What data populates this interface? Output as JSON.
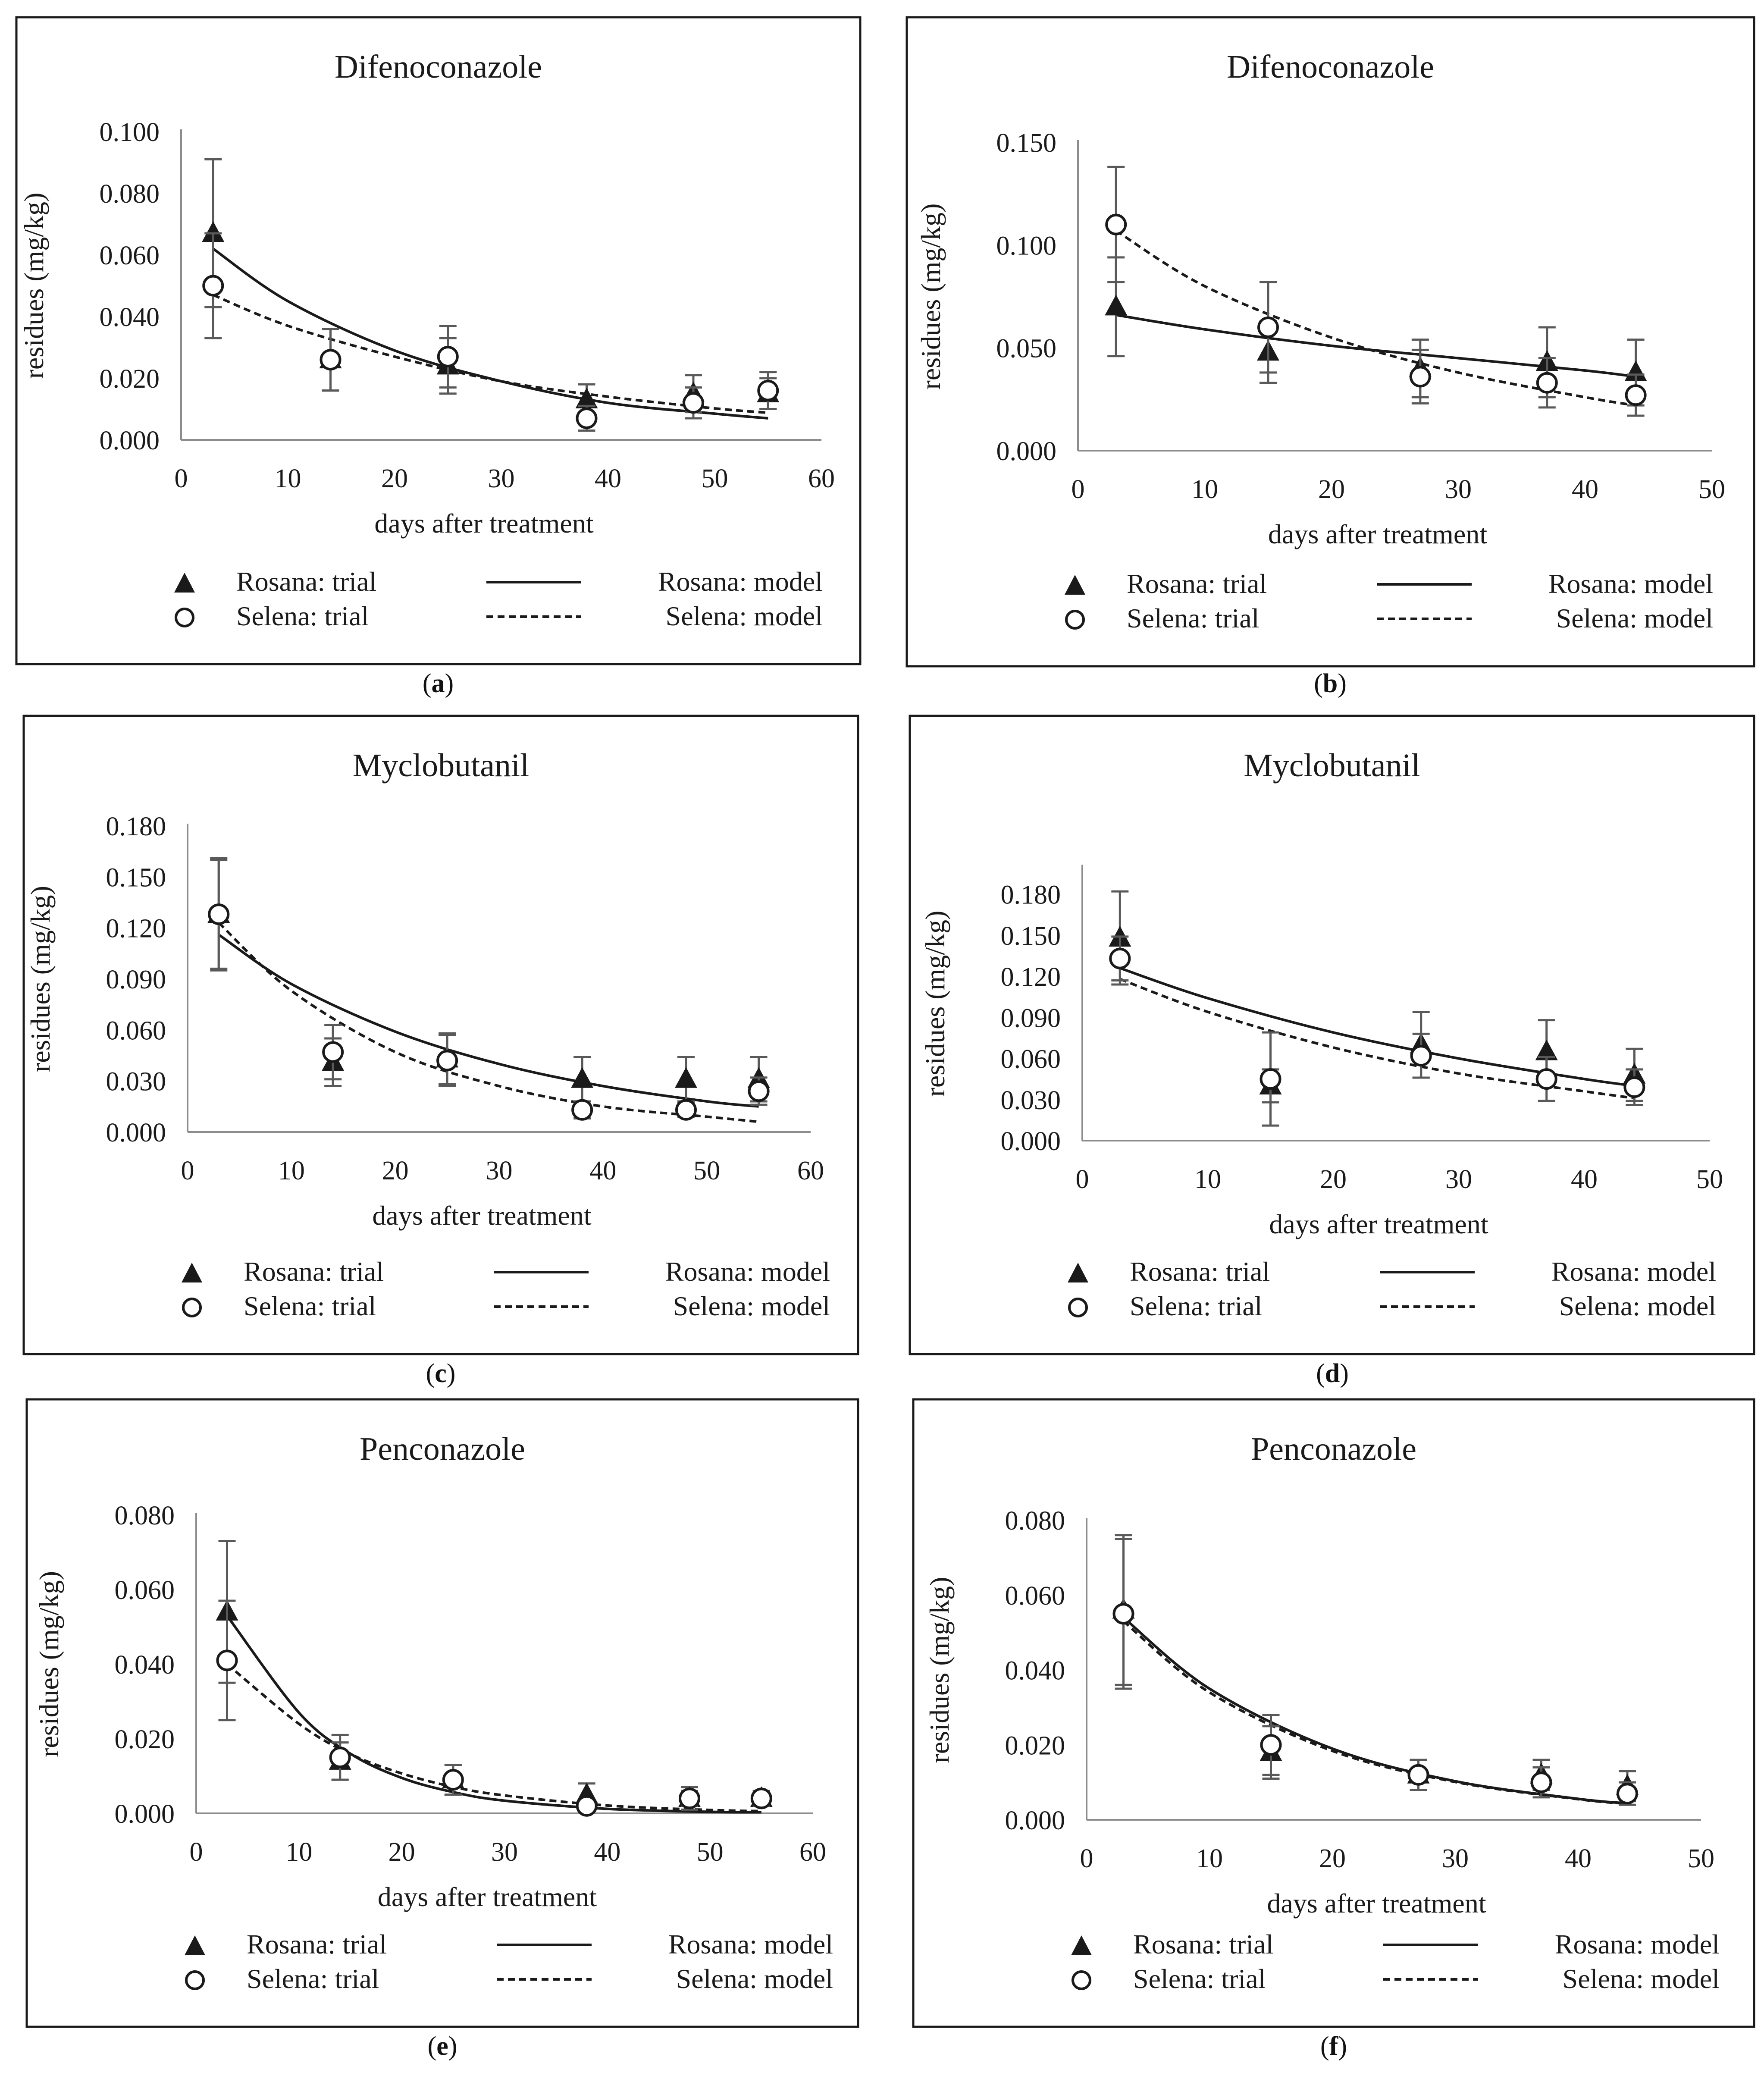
{
  "figure": {
    "legend_labels": {
      "rosana_trial": "Rosana: trial",
      "rosana_model": "Rosana: model",
      "selena_trial": "Selena: trial",
      "selena_model": "Selena: model"
    },
    "colors": {
      "ink": "#1a1a1a",
      "errorbar": "#595959",
      "background": "#ffffff"
    }
  },
  "chart_data": [
    {
      "panel": "a",
      "type": "scatter",
      "title": "Difenoconazole",
      "xlabel": "days after treatment",
      "ylabel": "residues (mg/kg)",
      "xlim": [
        0,
        60
      ],
      "xticks": [
        0,
        10,
        20,
        30,
        40,
        50,
        60
      ],
      "ylim": [
        0,
        0.1
      ],
      "yticks": [
        "0.000",
        "0.020",
        "0.040",
        "0.060",
        "0.080",
        "0.100"
      ],
      "series": [
        {
          "name": "Rosana: trial",
          "marker": "triangle",
          "x": [
            3,
            14,
            25,
            38,
            48,
            55
          ],
          "y": [
            0.067,
            0.026,
            0.024,
            0.013,
            0.015,
            0.015
          ],
          "err": [
            0.024,
            0.01,
            0.009,
            0.005,
            0.006,
            0.005
          ]
        },
        {
          "name": "Selena: trial",
          "marker": "circle",
          "x": [
            3,
            14,
            25,
            38,
            48,
            55
          ],
          "y": [
            0.05,
            0.026,
            0.027,
            0.007,
            0.012,
            0.016
          ],
          "err": [
            0.017,
            0.01,
            0.01,
            0.004,
            0.005,
            0.006
          ]
        },
        {
          "name": "Rosana: model",
          "line": "solid",
          "x": [
            3,
            10,
            20,
            30,
            40,
            50,
            55
          ],
          "y": [
            0.062,
            0.045,
            0.029,
            0.019,
            0.012,
            0.0085,
            0.007
          ]
        },
        {
          "name": "Selena: model",
          "line": "dashed",
          "x": [
            3,
            10,
            20,
            30,
            40,
            50,
            55
          ],
          "y": [
            0.047,
            0.037,
            0.027,
            0.019,
            0.014,
            0.0102,
            0.0088
          ]
        }
      ]
    },
    {
      "panel": "b",
      "type": "scatter",
      "title": "Difenoconazole",
      "xlabel": "days after treatment",
      "ylabel": "residues (mg/kg)",
      "xlim": [
        0,
        50
      ],
      "xticks": [
        0,
        10,
        20,
        30,
        40,
        50
      ],
      "ylim": [
        0,
        0.15
      ],
      "yticks": [
        "0.000",
        "0.050",
        "0.100",
        "0.150"
      ],
      "series": [
        {
          "name": "Rosana: trial",
          "marker": "triangle",
          "x": [
            3,
            15,
            27,
            37,
            44
          ],
          "y": [
            0.07,
            0.048,
            0.04,
            0.043,
            0.038
          ],
          "err": [
            0.024,
            0.015,
            0.014,
            0.017,
            0.016
          ]
        },
        {
          "name": "Selena: trial",
          "marker": "circle",
          "x": [
            3,
            15,
            27,
            37,
            44
          ],
          "y": [
            0.11,
            0.06,
            0.036,
            0.033,
            0.027
          ],
          "err": [
            0.028,
            0.022,
            0.013,
            0.012,
            0.01
          ]
        },
        {
          "name": "Rosana: model",
          "line": "solid",
          "x": [
            3,
            10,
            20,
            30,
            40,
            44
          ],
          "y": [
            0.066,
            0.059,
            0.051,
            0.045,
            0.039,
            0.036
          ]
        },
        {
          "name": "Selena: model",
          "line": "dashed",
          "x": [
            3,
            10,
            20,
            30,
            40,
            44
          ],
          "y": [
            0.107,
            0.08,
            0.055,
            0.038,
            0.026,
            0.022
          ]
        }
      ]
    },
    {
      "panel": "c",
      "type": "scatter",
      "title": "Myclobutanil",
      "xlabel": "days after treatment",
      "ylabel": "residues (mg/kg)",
      "xlim": [
        0,
        60
      ],
      "xticks": [
        0,
        10,
        20,
        30,
        40,
        50,
        60
      ],
      "ylim": [
        0,
        0.18
      ],
      "yticks": [
        "0.000",
        "0.030",
        "0.060",
        "0.090",
        "0.120",
        "0.150",
        "0.180"
      ],
      "series": [
        {
          "name": "Rosana: trial",
          "marker": "triangle",
          "x": [
            3,
            14,
            25,
            38,
            48,
            55
          ],
          "y": [
            0.128,
            0.041,
            0.043,
            0.031,
            0.031,
            0.031
          ],
          "err": [
            0.033,
            0.014,
            0.015,
            0.013,
            0.013,
            0.013
          ]
        },
        {
          "name": "Selena: trial",
          "marker": "circle",
          "x": [
            3,
            14,
            25,
            38,
            48,
            55
          ],
          "y": [
            0.128,
            0.047,
            0.042,
            0.013,
            0.013,
            0.024
          ],
          "err": [
            0.032,
            0.016,
            0.015,
            0.005,
            0.004,
            0.008
          ]
        },
        {
          "name": "Rosana: model",
          "line": "solid",
          "x": [
            3,
            10,
            20,
            30,
            40,
            50,
            55
          ],
          "y": [
            0.116,
            0.087,
            0.059,
            0.04,
            0.027,
            0.018,
            0.015
          ]
        },
        {
          "name": "Selena: model",
          "line": "dashed",
          "x": [
            3,
            10,
            20,
            30,
            40,
            50,
            55
          ],
          "y": [
            0.123,
            0.083,
            0.047,
            0.027,
            0.015,
            0.009,
            0.006
          ]
        }
      ]
    },
    {
      "panel": "d",
      "type": "scatter",
      "title": "Myclobutanil",
      "xlabel": "days after treatment",
      "ylabel": "residues (mg/kg)",
      "xlim": [
        0,
        50
      ],
      "xticks": [
        0,
        10,
        20,
        30,
        40,
        50
      ],
      "ylim": [
        0,
        0.2
      ],
      "yticks": [
        "0.000",
        "0.030",
        "0.060",
        "0.090",
        "0.120",
        "0.150",
        "0.180"
      ],
      "series": [
        {
          "name": "Rosana: trial",
          "marker": "triangle",
          "x": [
            3,
            15,
            27,
            37,
            44
          ],
          "y": [
            0.148,
            0.04,
            0.07,
            0.065,
            0.048
          ],
          "err": [
            0.034,
            0.012,
            0.024,
            0.023,
            0.019
          ]
        },
        {
          "name": "Selena: trial",
          "marker": "circle",
          "x": [
            3,
            15,
            27,
            37,
            44
          ],
          "y": [
            0.133,
            0.045,
            0.062,
            0.045,
            0.039
          ],
          "err": [
            0.016,
            0.034,
            0.016,
            0.016,
            0.013
          ]
        },
        {
          "name": "Rosana: model",
          "line": "solid",
          "x": [
            3,
            10,
            20,
            30,
            40,
            44
          ],
          "y": [
            0.126,
            0.104,
            0.079,
            0.06,
            0.045,
            0.04
          ]
        },
        {
          "name": "Selena: model",
          "line": "dashed",
          "x": [
            3,
            10,
            20,
            30,
            40,
            44
          ],
          "y": [
            0.118,
            0.094,
            0.068,
            0.049,
            0.036,
            0.031
          ]
        }
      ]
    },
    {
      "panel": "e",
      "type": "scatter",
      "title": "Penconazole",
      "xlabel": "days after treatment",
      "ylabel": "residues (mg/kg)",
      "xlim": [
        0,
        60
      ],
      "xticks": [
        0,
        10,
        20,
        30,
        40,
        50,
        60
      ],
      "ylim": [
        0,
        0.08
      ],
      "yticks": [
        "0.000",
        "0.020",
        "0.040",
        "0.060",
        "0.080"
      ],
      "series": [
        {
          "name": "Rosana: trial",
          "marker": "triangle",
          "x": [
            3,
            14,
            25,
            38,
            48,
            55
          ],
          "y": [
            0.054,
            0.014,
            0.009,
            0.005,
            0.004,
            0.004
          ],
          "err": [
            0.019,
            0.005,
            0.004,
            0.003,
            0.003,
            0.002
          ]
        },
        {
          "name": "Selena: trial",
          "marker": "circle",
          "x": [
            3,
            14,
            25,
            38,
            48,
            55
          ],
          "y": [
            0.041,
            0.015,
            0.009,
            0.002,
            0.004,
            0.004
          ],
          "err": [
            0.016,
            0.006,
            0.004,
            0.001,
            0.002,
            0.002
          ]
        },
        {
          "name": "Rosana: model",
          "line": "solid",
          "x": [
            3,
            10,
            15,
            20,
            25,
            30,
            40,
            50,
            55
          ],
          "y": [
            0.053,
            0.027,
            0.016,
            0.0095,
            0.0057,
            0.0034,
            0.0012,
            0.0004,
            0.0003
          ]
        },
        {
          "name": "Selena: model",
          "line": "dashed",
          "x": [
            3,
            10,
            15,
            20,
            25,
            30,
            40,
            50,
            55
          ],
          "y": [
            0.04,
            0.024,
            0.0159,
            0.0107,
            0.0071,
            0.0048,
            0.0021,
            0.0009,
            0.0006
          ]
        }
      ]
    },
    {
      "panel": "f",
      "type": "scatter",
      "title": "Penconazole",
      "xlabel": "days after treatment",
      "ylabel": "residues (mg/kg)",
      "xlim": [
        0,
        50
      ],
      "xticks": [
        0,
        10,
        20,
        30,
        40,
        50
      ],
      "ylim": [
        0,
        0.08
      ],
      "yticks": [
        "0.000",
        "0.020",
        "0.040",
        "0.060",
        "0.080"
      ],
      "series": [
        {
          "name": "Rosana: trial",
          "marker": "triangle",
          "x": [
            3,
            15,
            27,
            37,
            44
          ],
          "y": [
            0.056,
            0.018,
            0.012,
            0.012,
            0.009
          ],
          "err": [
            0.02,
            0.007,
            0.004,
            0.004,
            0.004
          ]
        },
        {
          "name": "Selena: trial",
          "marker": "circle",
          "x": [
            3,
            15,
            27,
            37,
            44
          ],
          "y": [
            0.055,
            0.02,
            0.012,
            0.01,
            0.007
          ],
          "err": [
            0.02,
            0.008,
            0.004,
            0.004,
            0.003
          ]
        },
        {
          "name": "Rosana: model",
          "line": "solid",
          "x": [
            3,
            10,
            20,
            30,
            40,
            44
          ],
          "y": [
            0.054,
            0.035,
            0.019,
            0.0103,
            0.0056,
            0.0044
          ]
        },
        {
          "name": "Selena: model",
          "line": "dashed",
          "x": [
            3,
            10,
            20,
            30,
            40,
            44
          ],
          "y": [
            0.053,
            0.034,
            0.0184,
            0.0101,
            0.0055,
            0.0043
          ]
        }
      ]
    }
  ],
  "captions": [
    "a",
    "b",
    "c",
    "d",
    "e",
    "f"
  ]
}
